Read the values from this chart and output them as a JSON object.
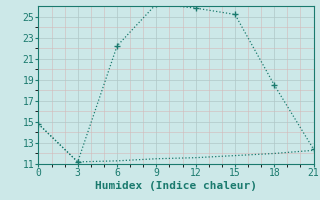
{
  "xlabel": "Humidex (Indice chaleur)",
  "background_color": "#cce8e8",
  "line_color": "#1a7a6e",
  "xlim": [
    0,
    21
  ],
  "ylim": [
    11,
    26
  ],
  "xticks": [
    0,
    3,
    6,
    9,
    12,
    15,
    18,
    21
  ],
  "yticks": [
    11,
    13,
    15,
    17,
    19,
    21,
    23,
    25
  ],
  "line1_x": [
    0,
    3,
    6,
    9,
    12,
    15,
    18,
    21
  ],
  "line1_y": [
    14.8,
    11.2,
    22.2,
    26.2,
    25.8,
    25.2,
    18.5,
    12.4
  ],
  "line2_x": [
    0,
    3,
    6,
    9,
    12,
    15,
    18,
    21
  ],
  "line2_y": [
    14.8,
    11.2,
    11.3,
    11.5,
    11.6,
    11.8,
    12.0,
    12.3
  ],
  "marker": "+",
  "marker_size": 4,
  "linewidth": 0.9,
  "grid_major_color": "#b0c8c8",
  "grid_minor_color": "#c8dada",
  "tick_fontsize": 7,
  "xlabel_fontsize": 8
}
